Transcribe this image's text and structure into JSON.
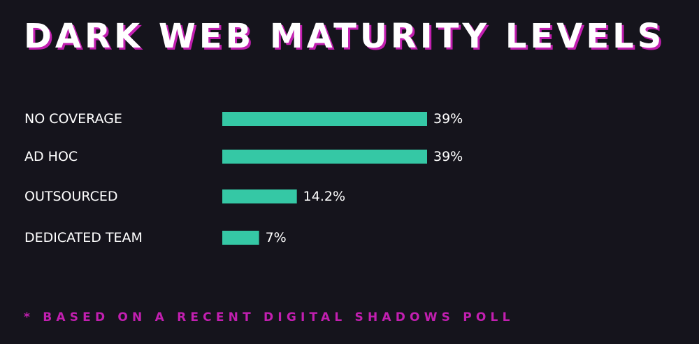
{
  "title": "DARK WEB MATURITY LEVELS",
  "footnote": "* BASED ON A RECENT DIGITAL SHADOWS POLL",
  "colors": {
    "background": "#15141c",
    "bar": "#35c8a5",
    "accent": "#c21fb0",
    "text": "#ffffff"
  },
  "chart_data": {
    "type": "bar",
    "orientation": "horizontal",
    "categories": [
      "NO COVERAGE",
      "AD HOC",
      "OUTSOURCED",
      "DEDICATED TEAM"
    ],
    "values": [
      39,
      39,
      14.2,
      7
    ],
    "value_labels": [
      "39%",
      "39%",
      "14.2%",
      "7%"
    ],
    "title": "DARK WEB MATURITY LEVELS",
    "xlabel": "",
    "ylabel": "",
    "grid": false
  }
}
